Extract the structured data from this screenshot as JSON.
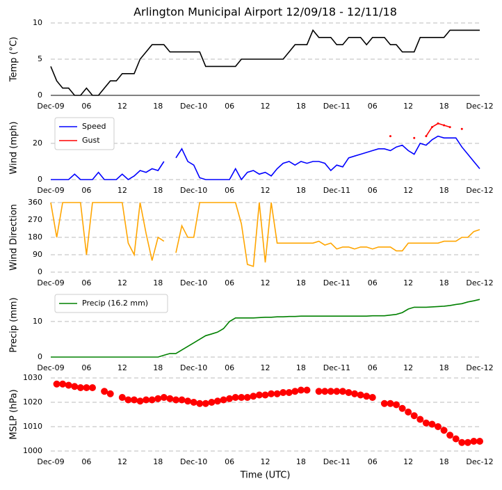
{
  "chart_data": [
    {
      "type": "line",
      "title": "Arlington Municipal Airport 12/09/18 - 12/11/18",
      "y_label": "Temp (°C)",
      "grid": true,
      "baseline": true,
      "xlim": [
        0,
        72
      ],
      "xticks": [
        {
          "value": 0,
          "label": "Dec-09"
        },
        {
          "value": 6,
          "label": "06"
        },
        12,
        18,
        {
          "value": 24,
          "label": "Dec-10"
        },
        {
          "value": 30,
          "label": "06"
        },
        {
          "value": 36,
          "label": "12"
        },
        {
          "value": 42,
          "label": "18"
        },
        {
          "value": 48,
          "label": "Dec-11"
        },
        {
          "value": 54,
          "label": "06"
        },
        {
          "value": 60,
          "label": "12"
        },
        {
          "value": 66,
          "label": "18"
        },
        {
          "value": 72,
          "label": "Dec-12"
        }
      ],
      "ylim": [
        0,
        10
      ],
      "yticks": [
        0,
        5,
        10
      ],
      "x": [
        0,
        1,
        2,
        3,
        4,
        5,
        6,
        7,
        8,
        9,
        10,
        11,
        12,
        13,
        14,
        15,
        16,
        17,
        18,
        19,
        20,
        21,
        22,
        23,
        24,
        25,
        26,
        27,
        28,
        29,
        30,
        31,
        32,
        33,
        34,
        35,
        36,
        37,
        38,
        39,
        40,
        41,
        42,
        43,
        44,
        45,
        46,
        47,
        48,
        49,
        50,
        51,
        52,
        53,
        54,
        55,
        56,
        57,
        58,
        59,
        60,
        61,
        62,
        63,
        64,
        65,
        66,
        67,
        68,
        69,
        70,
        71,
        72
      ],
      "series": [
        {
          "name": "Temp",
          "color": "#000000",
          "values": [
            4,
            2,
            1,
            1,
            0,
            0,
            1,
            0,
            0,
            1,
            2,
            2,
            3,
            3,
            3,
            5,
            6,
            7,
            7,
            7,
            6,
            6,
            6,
            6,
            6,
            6,
            4,
            4,
            4,
            4,
            4,
            4,
            5,
            5,
            5,
            5,
            5,
            5,
            5,
            5,
            6,
            7,
            7,
            7,
            9,
            8,
            8,
            8,
            7,
            7,
            8,
            8,
            8,
            7,
            8,
            8,
            8,
            7,
            7,
            6,
            6,
            6,
            8,
            8,
            8,
            8,
            8,
            9,
            9,
            9,
            9,
            9,
            9
          ]
        }
      ]
    },
    {
      "type": "line",
      "y_label": "Wind (mph)",
      "grid": true,
      "legend": "upper left",
      "xlim": [
        0,
        72
      ],
      "xticks": [
        {
          "value": 0,
          "label": "Dec-09"
        },
        {
          "value": 6,
          "label": "06"
        },
        12,
        18,
        {
          "value": 24,
          "label": "Dec-10"
        },
        {
          "value": 30,
          "label": "06"
        },
        {
          "value": 36,
          "label": "12"
        },
        {
          "value": 42,
          "label": "18"
        },
        {
          "value": 48,
          "label": "Dec-11"
        },
        {
          "value": 54,
          "label": "06"
        },
        {
          "value": 60,
          "label": "12"
        },
        {
          "value": 66,
          "label": "18"
        },
        {
          "value": 72,
          "label": "Dec-12"
        }
      ],
      "ylim": [
        0,
        35
      ],
      "yticks": [
        0,
        20
      ],
      "x": [
        0,
        1,
        2,
        3,
        4,
        5,
        6,
        7,
        8,
        9,
        10,
        11,
        12,
        13,
        14,
        15,
        16,
        17,
        18,
        19,
        20,
        21,
        22,
        23,
        24,
        25,
        26,
        27,
        28,
        29,
        30,
        31,
        32,
        33,
        34,
        35,
        36,
        37,
        38,
        39,
        40,
        41,
        42,
        43,
        44,
        45,
        46,
        47,
        48,
        49,
        50,
        51,
        52,
        53,
        54,
        55,
        56,
        57,
        58,
        59,
        60,
        61,
        62,
        63,
        64,
        65,
        66,
        67,
        68,
        69,
        70,
        71,
        72
      ],
      "series": [
        {
          "name": "Speed",
          "color": "#0000ff",
          "values": [
            0,
            0,
            0,
            0,
            3,
            0,
            0,
            0,
            4,
            0,
            0,
            0,
            3,
            0,
            2,
            5,
            4,
            6,
            5,
            10,
            null,
            12,
            17,
            10,
            8,
            1,
            0,
            0,
            0,
            0,
            0,
            6,
            0,
            4,
            5,
            3,
            4,
            2,
            6,
            9,
            10,
            8,
            10,
            9,
            10,
            10,
            9,
            5,
            8,
            7,
            12,
            13,
            14,
            15,
            16,
            17,
            17,
            16,
            18,
            19,
            16,
            14,
            20,
            19,
            22,
            24,
            23,
            23,
            23,
            18,
            14,
            10,
            6
          ]
        },
        {
          "name": "Gust",
          "color": "#ff0000",
          "marker": true,
          "values": [
            null,
            null,
            null,
            null,
            null,
            null,
            null,
            null,
            null,
            null,
            null,
            null,
            null,
            null,
            null,
            null,
            null,
            null,
            null,
            null,
            null,
            null,
            null,
            null,
            null,
            null,
            null,
            null,
            null,
            null,
            null,
            null,
            null,
            null,
            null,
            null,
            null,
            null,
            null,
            null,
            null,
            null,
            null,
            null,
            null,
            null,
            null,
            null,
            null,
            null,
            null,
            null,
            null,
            null,
            null,
            null,
            null,
            24,
            null,
            null,
            null,
            23,
            null,
            24,
            29,
            31,
            30,
            29,
            null,
            28,
            null,
            null,
            null
          ]
        }
      ]
    },
    {
      "type": "line",
      "y_label": "Wind Direction",
      "grid": true,
      "xlim": [
        0,
        72
      ],
      "xticks": [
        {
          "value": 0,
          "label": "Dec-09"
        },
        {
          "value": 6,
          "label": "06"
        },
        12,
        18,
        {
          "value": 24,
          "label": "Dec-10"
        },
        {
          "value": 30,
          "label": "06"
        },
        {
          "value": 36,
          "label": "12"
        },
        {
          "value": 42,
          "label": "18"
        },
        {
          "value": 48,
          "label": "Dec-11"
        },
        {
          "value": 54,
          "label": "06"
        },
        {
          "value": 60,
          "label": "12"
        },
        {
          "value": 66,
          "label": "18"
        },
        {
          "value": 72,
          "label": "Dec-12"
        }
      ],
      "ylim": [
        0,
        360
      ],
      "yticks": [
        0,
        90,
        180,
        270,
        360
      ],
      "x": [
        0,
        1,
        2,
        3,
        4,
        5,
        6,
        7,
        8,
        9,
        10,
        11,
        12,
        13,
        14,
        15,
        16,
        17,
        18,
        19,
        20,
        21,
        22,
        23,
        24,
        25,
        26,
        27,
        28,
        29,
        30,
        31,
        32,
        33,
        34,
        35,
        36,
        37,
        38,
        39,
        40,
        41,
        42,
        43,
        44,
        45,
        46,
        47,
        48,
        49,
        50,
        51,
        52,
        53,
        54,
        55,
        56,
        57,
        58,
        59,
        60,
        61,
        62,
        63,
        64,
        65,
        66,
        67,
        68,
        69,
        70,
        71,
        72
      ],
      "series": [
        {
          "name": "Direction",
          "color": "#ffa500",
          "values": [
            360,
            180,
            360,
            360,
            360,
            360,
            90,
            360,
            360,
            360,
            360,
            360,
            360,
            150,
            90,
            360,
            200,
            60,
            180,
            160,
            null,
            100,
            240,
            180,
            180,
            360,
            360,
            360,
            360,
            360,
            360,
            360,
            250,
            40,
            30,
            360,
            50,
            360,
            150,
            150,
            150,
            150,
            150,
            150,
            150,
            160,
            140,
            150,
            120,
            130,
            130,
            120,
            130,
            130,
            120,
            130,
            130,
            130,
            110,
            110,
            150,
            150,
            150,
            150,
            150,
            150,
            160,
            160,
            160,
            180,
            180,
            210,
            220
          ]
        }
      ]
    },
    {
      "type": "line",
      "y_label": "Precip (mm)",
      "grid": true,
      "legend": "upper left",
      "xlim": [
        0,
        72
      ],
      "xticks": [
        {
          "value": 0,
          "label": "Dec-09"
        },
        {
          "value": 6,
          "label": "06"
        },
        12,
        18,
        {
          "value": 24,
          "label": "Dec-10"
        },
        {
          "value": 30,
          "label": "06"
        },
        {
          "value": 36,
          "label": "12"
        },
        {
          "value": 42,
          "label": "18"
        },
        {
          "value": 48,
          "label": "Dec-11"
        },
        {
          "value": 54,
          "label": "06"
        },
        {
          "value": 60,
          "label": "12"
        },
        {
          "value": 66,
          "label": "18"
        },
        {
          "value": 72,
          "label": "Dec-12"
        }
      ],
      "ylim": [
        0,
        18
      ],
      "yticks": [
        0,
        10
      ],
      "x": [
        0,
        1,
        2,
        3,
        4,
        5,
        6,
        7,
        8,
        9,
        10,
        11,
        12,
        13,
        14,
        15,
        16,
        17,
        18,
        19,
        20,
        21,
        22,
        23,
        24,
        25,
        26,
        27,
        28,
        29,
        30,
        31,
        32,
        33,
        34,
        35,
        36,
        37,
        38,
        39,
        40,
        41,
        42,
        43,
        44,
        45,
        46,
        47,
        48,
        49,
        50,
        51,
        52,
        53,
        54,
        55,
        56,
        57,
        58,
        59,
        60,
        61,
        62,
        63,
        64,
        65,
        66,
        67,
        68,
        69,
        70,
        71,
        72
      ],
      "series": [
        {
          "name": "Precip (16.2 mm)",
          "color": "#008000",
          "values": [
            0,
            0,
            0,
            0,
            0,
            0,
            0,
            0,
            0,
            0,
            0,
            0,
            0,
            0,
            0,
            0,
            0,
            0,
            0,
            0.5,
            1,
            1,
            2,
            3,
            4,
            5,
            6,
            6.5,
            7,
            8,
            10,
            11,
            11,
            11,
            11,
            11.1,
            11.2,
            11.2,
            11.3,
            11.3,
            11.4,
            11.4,
            11.5,
            11.5,
            11.5,
            11.5,
            11.5,
            11.5,
            11.5,
            11.5,
            11.5,
            11.5,
            11.5,
            11.5,
            11.6,
            11.6,
            11.6,
            11.8,
            12,
            12.5,
            13.5,
            14,
            14,
            14,
            14.1,
            14.2,
            14.3,
            14.5,
            14.8,
            15,
            15.5,
            15.8,
            16.2
          ]
        }
      ]
    },
    {
      "type": "scatter",
      "y_label": "MSLP (hPa)",
      "x_label": "Time (UTC)",
      "grid": true,
      "xlim": [
        0,
        72
      ],
      "xticks": [
        {
          "value": 0,
          "label": "Dec-09"
        },
        {
          "value": 6,
          "label": "06"
        },
        12,
        18,
        {
          "value": 24,
          "label": "Dec-10"
        },
        {
          "value": 30,
          "label": "06"
        },
        {
          "value": 36,
          "label": "12"
        },
        {
          "value": 42,
          "label": "18"
        },
        {
          "value": 48,
          "label": "Dec-11"
        },
        {
          "value": 54,
          "label": "06"
        },
        {
          "value": 60,
          "label": "12"
        },
        {
          "value": 66,
          "label": "18"
        },
        {
          "value": 72,
          "label": "Dec-12"
        }
      ],
      "ylim": [
        1000,
        1030
      ],
      "yticks": [
        1000,
        1010,
        1020,
        1030
      ],
      "x": [
        1,
        2,
        3,
        4,
        5,
        6,
        7,
        9,
        10,
        12,
        13,
        14,
        15,
        16,
        17,
        18,
        19,
        20,
        21,
        22,
        23,
        24,
        25,
        26,
        27,
        28,
        29,
        30,
        31,
        32,
        33,
        34,
        35,
        36,
        37,
        38,
        39,
        40,
        41,
        42,
        43,
        45,
        46,
        47,
        48,
        49,
        50,
        51,
        52,
        53,
        54,
        56,
        57,
        58,
        59,
        60,
        61,
        62,
        63,
        64,
        65,
        66,
        67,
        68,
        69,
        70,
        71,
        72
      ],
      "series": [
        {
          "name": "MSLP",
          "color": "#ff0000",
          "values": [
            1027.5,
            1027.5,
            1027,
            1026.5,
            1026,
            1026,
            1026,
            1024.5,
            1023.5,
            1022,
            1021,
            1021,
            1020.5,
            1021,
            1021,
            1021.5,
            1022,
            1021.5,
            1021,
            1021,
            1020.5,
            1020,
            1019.5,
            1019.5,
            1020,
            1020.5,
            1021,
            1021.5,
            1022,
            1022,
            1022,
            1022.5,
            1023,
            1023,
            1023.5,
            1023.5,
            1024,
            1024,
            1024.5,
            1025,
            1025,
            1024.5,
            1024.5,
            1024.5,
            1024.5,
            1024.5,
            1024,
            1023.5,
            1023,
            1022.5,
            1022,
            1019.5,
            1019.5,
            1019,
            1017.5,
            1016,
            1014.5,
            1013,
            1011.5,
            1011,
            1010,
            1008.5,
            1006.5,
            1005,
            1003.5,
            1003.5,
            1004,
            1004
          ]
        }
      ]
    }
  ]
}
